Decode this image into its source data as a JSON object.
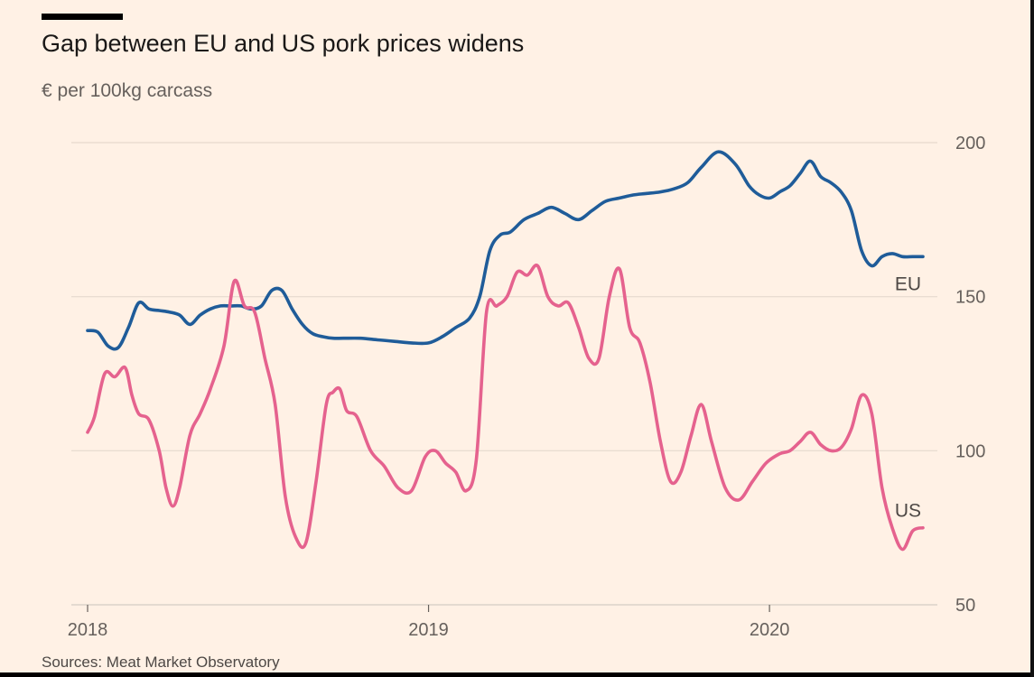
{
  "header": {
    "title": "Gap between EU and US pork prices widens",
    "subtitle": "€ per 100kg carcass"
  },
  "footer": {
    "source": "Sources: Meat Market Observatory"
  },
  "chart_data": {
    "type": "line",
    "title": "Gap between EU and US pork prices widens",
    "subtitle": "€ per 100kg carcass",
    "xlabel": "",
    "ylabel": "",
    "ylim": [
      50,
      200
    ],
    "yticks": [
      50,
      100,
      150,
      200
    ],
    "y_axis_side": "right",
    "xlim": [
      2018.0,
      2020.45
    ],
    "xticks": [
      {
        "value": 2018,
        "label": "2018"
      },
      {
        "value": 2019,
        "label": "2019"
      },
      {
        "value": 2020,
        "label": "2020"
      }
    ],
    "grid": "horizontal",
    "legend": "inline labels at series ends",
    "series": [
      {
        "name": "EU",
        "color": "#1F5C99",
        "x": [
          2018.0,
          2018.03,
          2018.06,
          2018.09,
          2018.12,
          2018.15,
          2018.18,
          2018.21,
          2018.24,
          2018.27,
          2018.3,
          2018.33,
          2018.36,
          2018.39,
          2018.42,
          2018.45,
          2018.48,
          2018.51,
          2018.54,
          2018.57,
          2018.6,
          2018.63,
          2018.66,
          2018.69,
          2018.72,
          2018.75,
          2018.8,
          2018.85,
          2018.9,
          2018.95,
          2019.0,
          2019.04,
          2019.08,
          2019.12,
          2019.15,
          2019.18,
          2019.21,
          2019.24,
          2019.28,
          2019.32,
          2019.36,
          2019.4,
          2019.44,
          2019.48,
          2019.52,
          2019.56,
          2019.6,
          2019.64,
          2019.68,
          2019.72,
          2019.76,
          2019.8,
          2019.85,
          2019.9,
          2019.94,
          2019.97,
          2020.0,
          2020.03,
          2020.06,
          2020.09,
          2020.12,
          2020.15,
          2020.18,
          2020.21,
          2020.24,
          2020.27,
          2020.3,
          2020.33,
          2020.36,
          2020.39,
          2020.42,
          2020.45
        ],
        "values": [
          139,
          138.5,
          134,
          133.5,
          140,
          148,
          146,
          145.5,
          145,
          144,
          141,
          144,
          146,
          147,
          147,
          147,
          146,
          147,
          152,
          152,
          146,
          141,
          138,
          137,
          136.5,
          136.5,
          136.5,
          136,
          135.5,
          135,
          135,
          137,
          140,
          143,
          150,
          165,
          170,
          171,
          175,
          177,
          179,
          177,
          175,
          178,
          181,
          182,
          183,
          183.5,
          184,
          185,
          187,
          192,
          197,
          193,
          186,
          183,
          182,
          184,
          186,
          190,
          194,
          189,
          187,
          184,
          178,
          165,
          160,
          163,
          164,
          163,
          163,
          163
        ]
      },
      {
        "name": "US",
        "color": "#E5628E",
        "x": [
          2018.0,
          2018.02,
          2018.05,
          2018.08,
          2018.11,
          2018.13,
          2018.15,
          2018.18,
          2018.21,
          2018.23,
          2018.25,
          2018.27,
          2018.3,
          2018.33,
          2018.36,
          2018.4,
          2018.43,
          2018.46,
          2018.49,
          2018.52,
          2018.55,
          2018.58,
          2018.61,
          2018.64,
          2018.67,
          2018.7,
          2018.72,
          2018.74,
          2018.76,
          2018.79,
          2018.83,
          2018.87,
          2018.91,
          2018.95,
          2018.99,
          2019.02,
          2019.05,
          2019.08,
          2019.11,
          2019.14,
          2019.17,
          2019.2,
          2019.23,
          2019.26,
          2019.29,
          2019.32,
          2019.35,
          2019.38,
          2019.41,
          2019.44,
          2019.47,
          2019.5,
          2019.53,
          2019.56,
          2019.59,
          2019.62,
          2019.65,
          2019.68,
          2019.71,
          2019.74,
          2019.77,
          2019.8,
          2019.83,
          2019.87,
          2019.91,
          2019.95,
          2019.99,
          2020.03,
          2020.06,
          2020.09,
          2020.12,
          2020.15,
          2020.18,
          2020.21,
          2020.24,
          2020.27,
          2020.3,
          2020.33,
          2020.36,
          2020.39,
          2020.42,
          2020.45
        ],
        "values": [
          106,
          111,
          125,
          124,
          127,
          118,
          112,
          110,
          100,
          88,
          82,
          88,
          105,
          112,
          120,
          134,
          155,
          147,
          145,
          130,
          115,
          85,
          72,
          70,
          90,
          115,
          119,
          120,
          113,
          111,
          100,
          95,
          88,
          87,
          98,
          100,
          96,
          93,
          87,
          97,
          145,
          147,
          150,
          158,
          157,
          160,
          150,
          147,
          148,
          140,
          130,
          130,
          150,
          159,
          140,
          135,
          122,
          103,
          90,
          93,
          105,
          115,
          103,
          88,
          84,
          90,
          96,
          99,
          100,
          103,
          106,
          102,
          100,
          101,
          107,
          118,
          112,
          88,
          75,
          68,
          74,
          75
        ]
      }
    ]
  }
}
